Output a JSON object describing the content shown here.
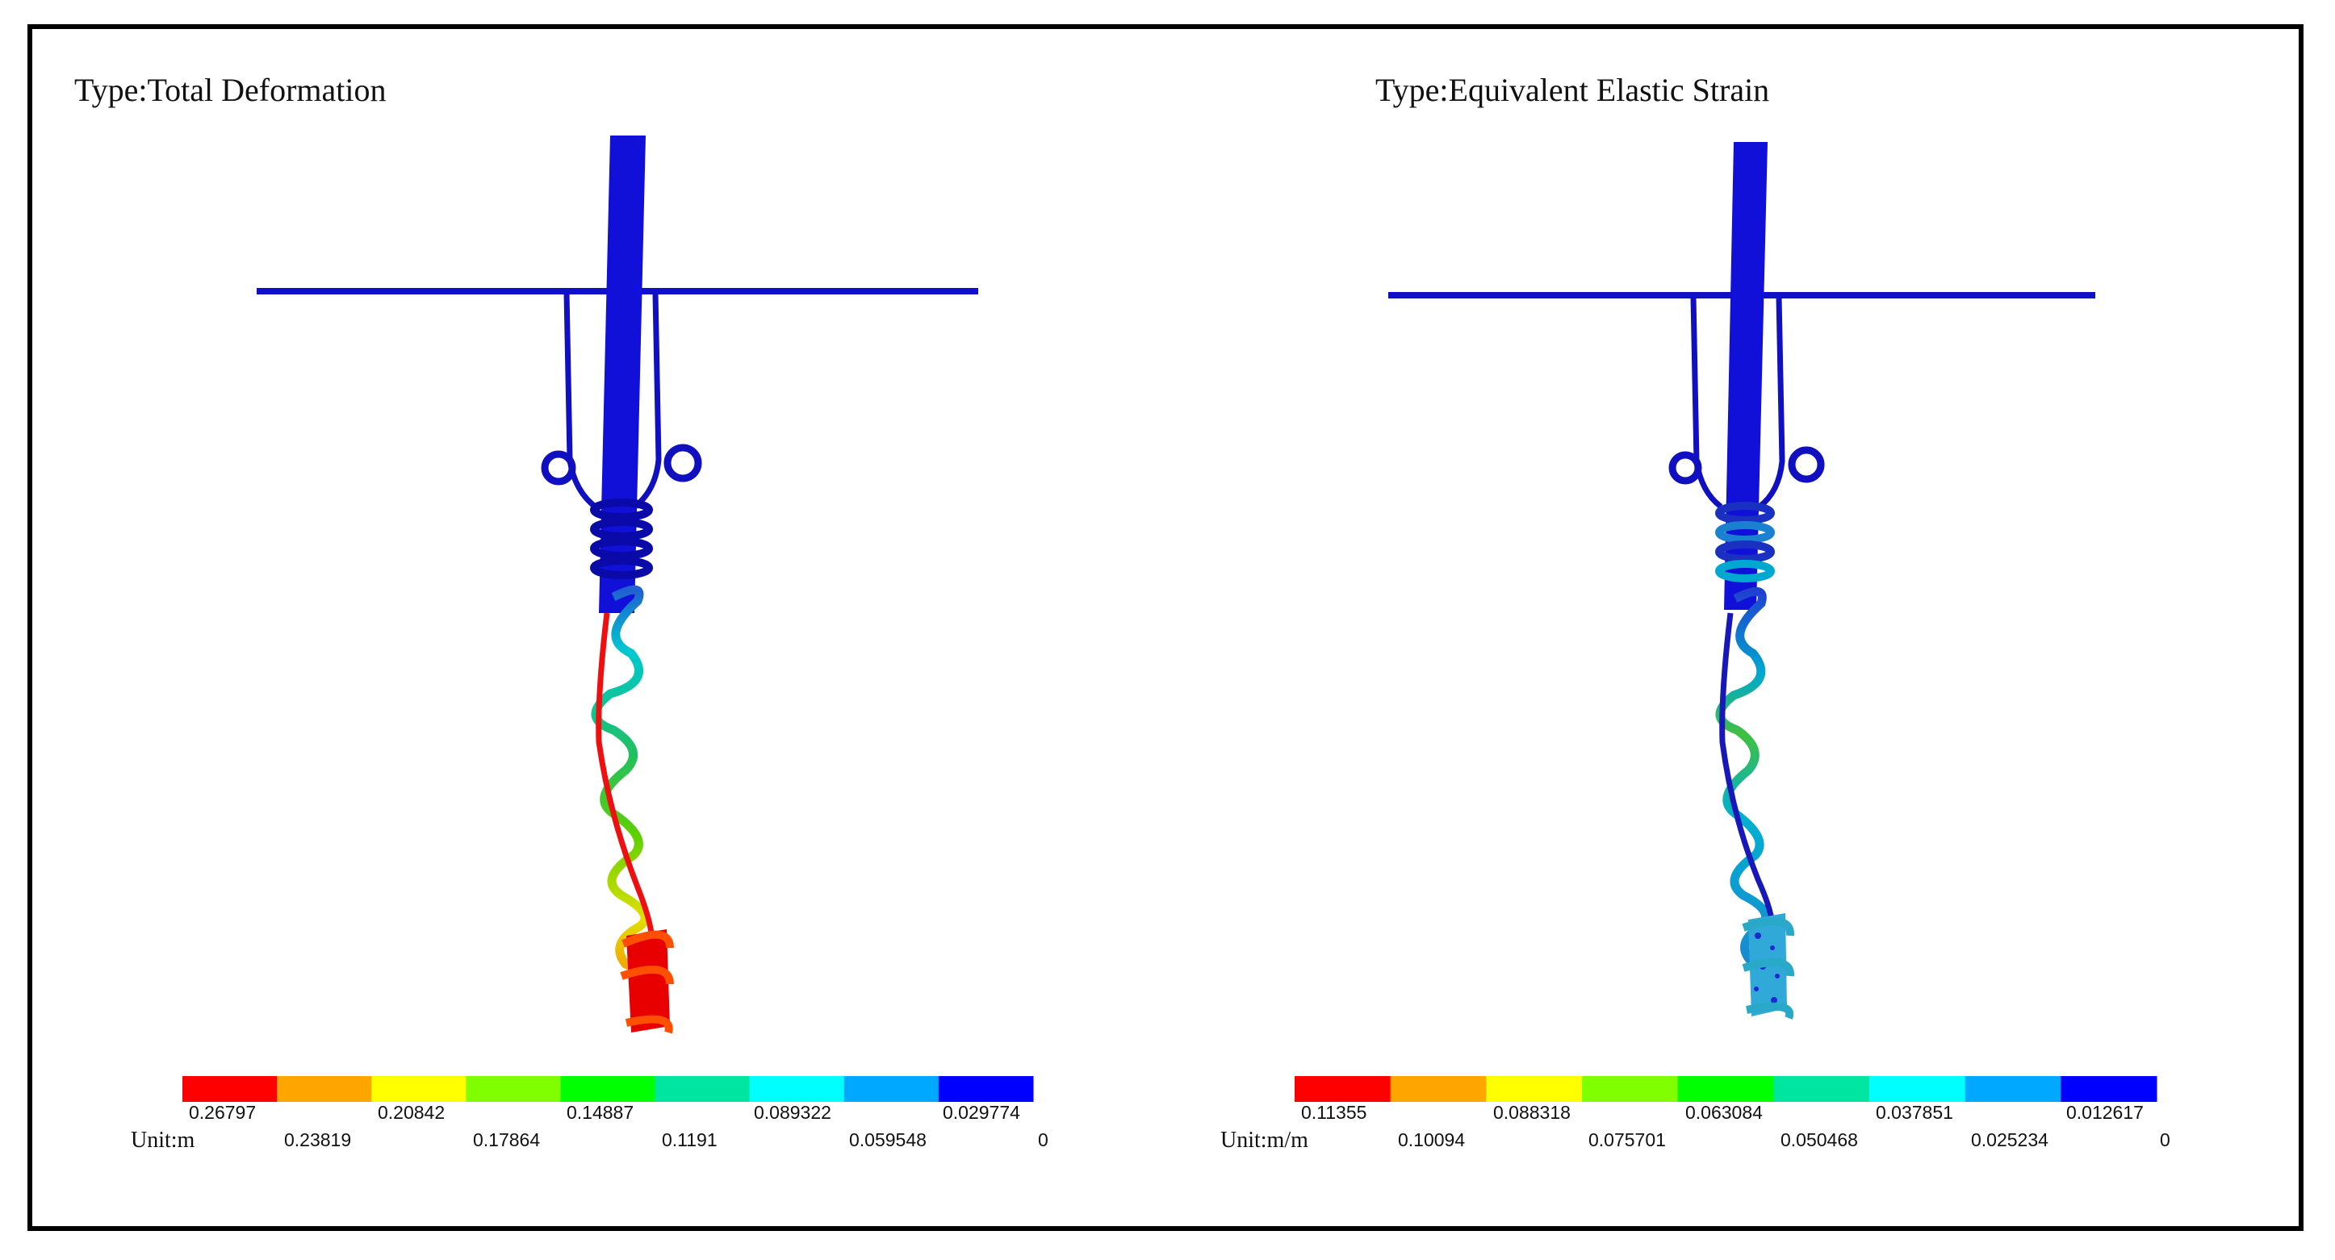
{
  "panels": [
    {
      "title": "Type:Total Deformation",
      "unit": "Unit:m",
      "legend_colors": [
        "#ff0000",
        "#ffa500",
        "#ffff00",
        "#80ff00",
        "#00ff00",
        "#00e6a0",
        "#00ffff",
        "#00a8ff",
        "#0000ff"
      ],
      "legend_top_values": [
        "0.26797",
        "0.20842",
        "0.14887",
        "0.089322",
        "0.029774"
      ],
      "legend_bottom_values": [
        "0.23819",
        "0.17864",
        "0.1191",
        "0.059548",
        "0"
      ]
    },
    {
      "title": "Type:Equivalent Elastic Strain",
      "unit": "Unit:m/m",
      "legend_colors": [
        "#ff0000",
        "#ffa500",
        "#ffff00",
        "#80ff00",
        "#00ff00",
        "#00e6a0",
        "#00ffff",
        "#00a8ff",
        "#0000ff"
      ],
      "legend_top_values": [
        "0.11355",
        "0.088318",
        "0.063084",
        "0.037851",
        "0.012617"
      ],
      "legend_bottom_values": [
        "0.10094",
        "0.075701",
        "0.050468",
        "0.025234",
        "0"
      ]
    }
  ]
}
